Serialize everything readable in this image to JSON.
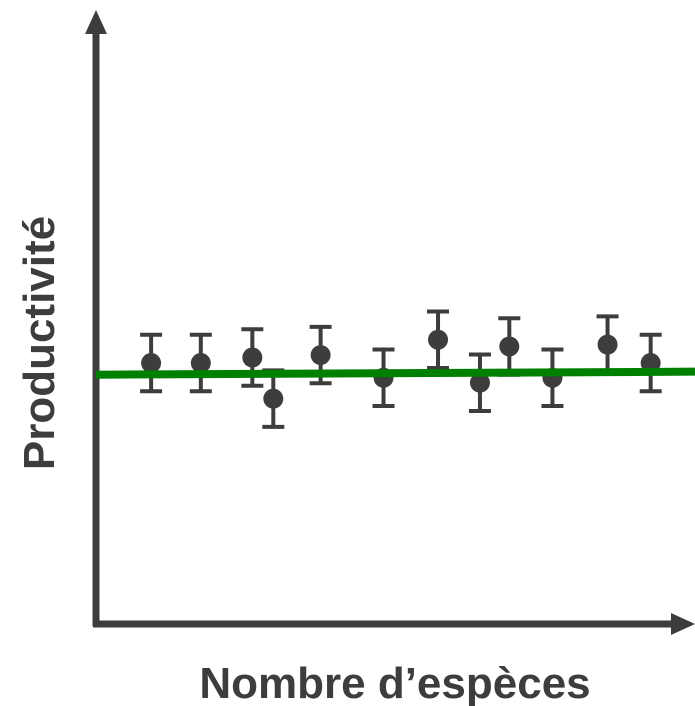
{
  "chart_data": {
    "type": "scatter",
    "title": "",
    "xlabel": "Nombre d’espèces",
    "ylabel": "Productivité",
    "xlim": [
      0,
      100
    ],
    "ylim": [
      0,
      100
    ],
    "grid": false,
    "legend": "none",
    "x_ticks": [],
    "y_ticks": [],
    "points": [
      {
        "x": 9.2,
        "y": 42.5,
        "err": 4.6
      },
      {
        "x": 17.5,
        "y": 42.5,
        "err": 4.6
      },
      {
        "x": 26.1,
        "y": 43.4,
        "err": 4.6
      },
      {
        "x": 29.6,
        "y": 36.7,
        "err": 4.6
      },
      {
        "x": 37.5,
        "y": 43.8,
        "err": 4.6
      },
      {
        "x": 48.0,
        "y": 40.1,
        "err": 4.6
      },
      {
        "x": 57.1,
        "y": 46.3,
        "err": 4.6
      },
      {
        "x": 64.1,
        "y": 39.3,
        "err": 4.6
      },
      {
        "x": 69.0,
        "y": 45.2,
        "err": 4.6
      },
      {
        "x": 76.2,
        "y": 40.1,
        "err": 4.6
      },
      {
        "x": 85.4,
        "y": 45.5,
        "err": 4.6
      },
      {
        "x": 92.6,
        "y": 42.5,
        "err": 4.6
      }
    ],
    "trend_line": {
      "x": [
        0,
        100
      ],
      "y": [
        40.6,
        41.1
      ]
    },
    "colors": {
      "axis": "#3d3d3d",
      "points": "#3d3d3d",
      "error_bars": "#3d3d3d",
      "trend": "#008000",
      "label": "#3d3d3d"
    }
  }
}
